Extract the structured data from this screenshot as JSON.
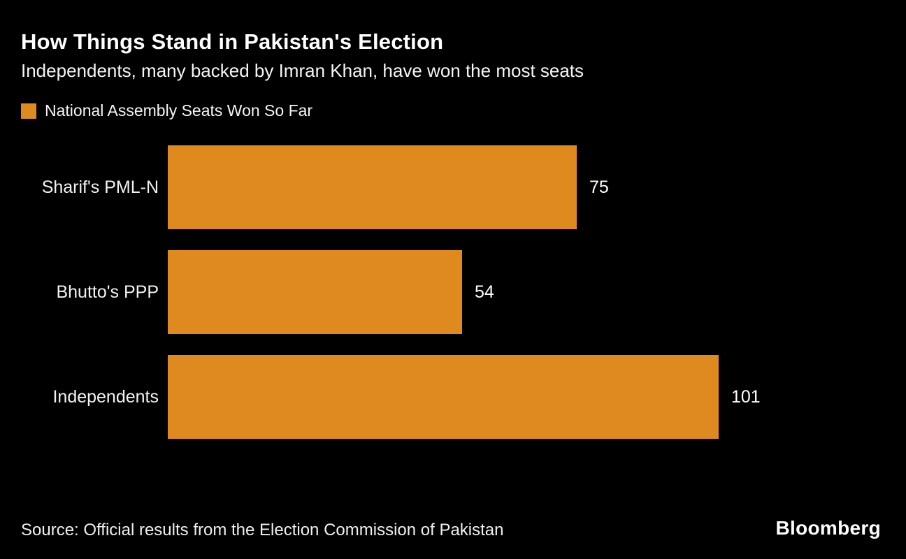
{
  "chart_data": {
    "type": "bar",
    "orientation": "horizontal",
    "title": "How Things Stand in Pakistan's Election",
    "subtitle": "Independents, many backed by Imran Khan, have won the most seats",
    "legend_label": "National Assembly Seats Won So Far",
    "categories": [
      "Sharif's PML-N",
      "Bhutto's PPP",
      "Independents"
    ],
    "values": [
      75,
      54,
      101
    ],
    "xlim": [
      0,
      101
    ],
    "grid": false,
    "legend_position": "top-left",
    "bar_color": "#DE8A1F",
    "background_color": "#000000",
    "text_color": "#FFFFFF",
    "source": "Source: Official results from the Election Commission of Pakistan",
    "brand": "Bloomberg"
  }
}
